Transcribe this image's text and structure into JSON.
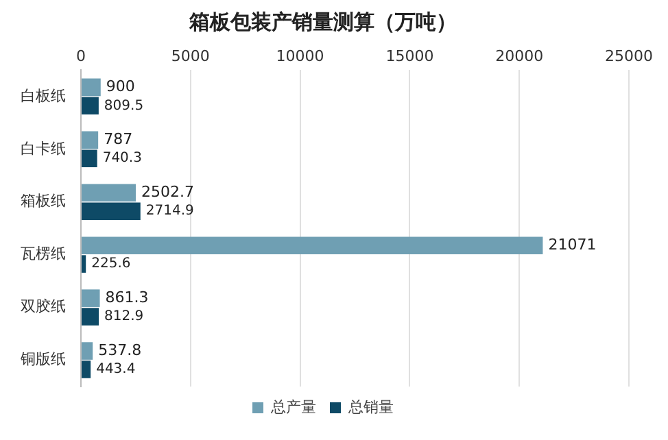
{
  "chart_data": {
    "type": "bar",
    "orientation": "horizontal",
    "title": "箱板包装产销量测算（万吨）",
    "categories": [
      "白板纸",
      "白卡纸",
      "箱板纸",
      "瓦楞纸",
      "双胶纸",
      "铜版纸"
    ],
    "series": [
      {
        "name": "总产量",
        "color": "#6f9fb3",
        "values": [
          900,
          787,
          2502.7,
          21071,
          861.3,
          537.8
        ]
      },
      {
        "name": "总销量",
        "color": "#0e4a66",
        "values": [
          809.5,
          740.3,
          2714.9,
          225.6,
          812.9,
          443.4
        ]
      }
    ],
    "xlim": [
      0,
      25000
    ],
    "xticks": [
      0,
      5000,
      10000,
      15000,
      20000,
      25000
    ],
    "grid": "x",
    "legend": "bottom",
    "data_labels": true
  }
}
